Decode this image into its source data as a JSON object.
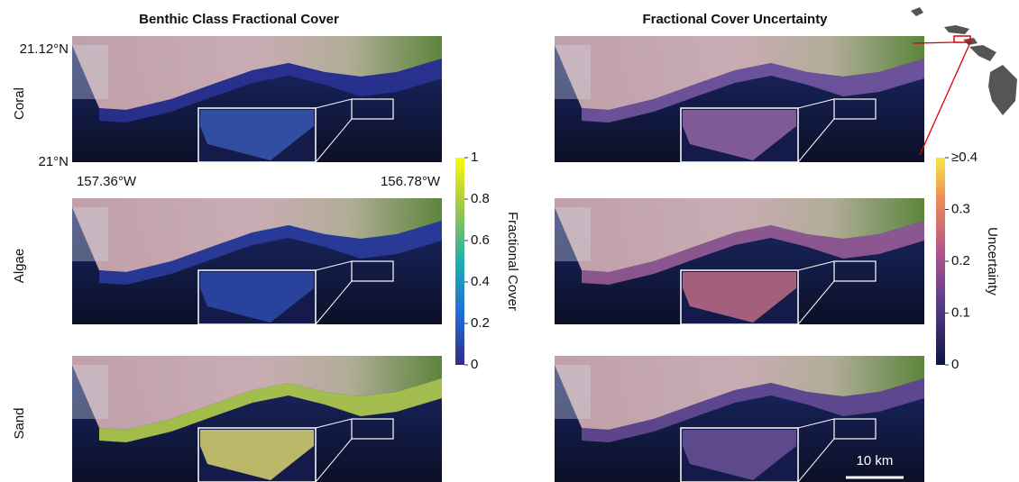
{
  "titles": [
    "Benthic Class Fractional Cover",
    "Fractional Cover Uncertainty"
  ],
  "row_labels": [
    "Coral",
    "Algae",
    "Sand"
  ],
  "latitude_labels": [
    "21.12°N",
    "21°N"
  ],
  "longitude_labels": [
    "157.36°W",
    "156.78°W"
  ],
  "colorbars": [
    {
      "label": "Fractional Cover",
      "ticks": [
        0,
        0.2,
        0.4,
        0.6,
        0.8,
        1
      ]
    },
    {
      "label": "Uncertainty",
      "ticks": [
        0,
        0.1,
        0.2,
        0.3,
        {
          "value": 0.4,
          "label": "≥0.4"
        }
      ]
    }
  ],
  "scale_bar": "10 km"
}
